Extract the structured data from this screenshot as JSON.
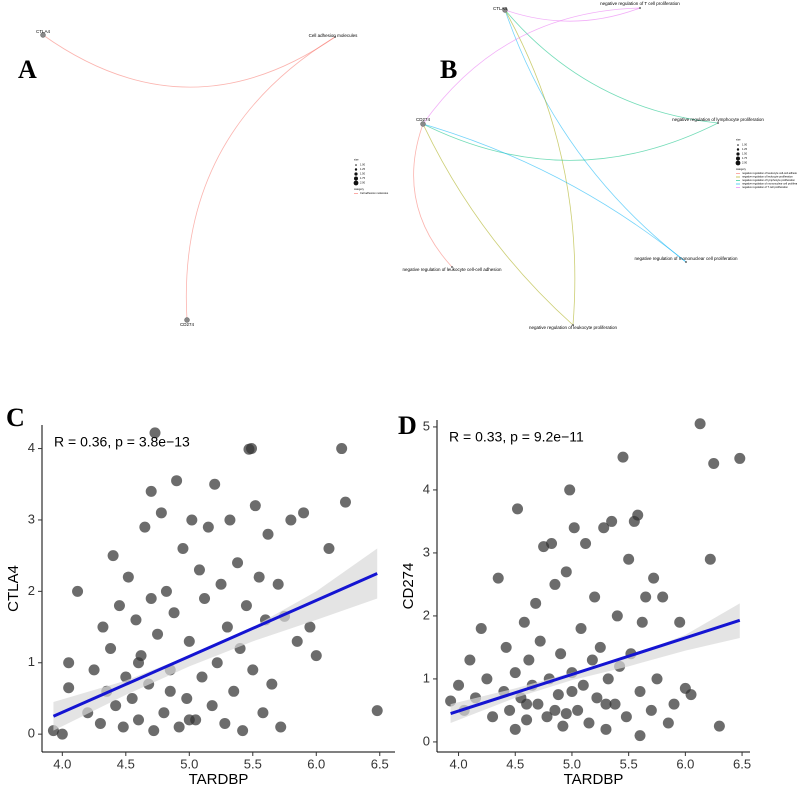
{
  "panel_labels": [
    "A",
    "B",
    "C",
    "D"
  ],
  "diagrams": [
    {
      "nodes": [
        {
          "label": "CTLA4"
        },
        {
          "label": "Cell adhesion molecules"
        },
        {
          "label": "CD274"
        }
      ],
      "edges": [
        [
          0,
          1
        ],
        [
          2,
          1
        ]
      ],
      "legend": {
        "size_title": "size",
        "sizes": [
          "1.00",
          "1.25",
          "1.50",
          "1.75",
          "2.00"
        ],
        "category_title": "category",
        "categories": [
          {
            "name": "Cell adhesion molecules",
            "color": "#F8766D"
          }
        ]
      }
    },
    {
      "nodes": [
        {
          "label": "CTLA4"
        },
        {
          "label": "CD274"
        },
        {
          "label": "negative regulation of T cell proliferation"
        },
        {
          "label": "negative regulation of lymphocyte proliferation"
        },
        {
          "label": "negative regulation of mononuclear cell proliferation"
        },
        {
          "label": "negative regulation of leukocyte proliferation"
        },
        {
          "label": "negative regulation of leukocyte cell-cell adhesion"
        }
      ],
      "edges": [
        [
          0,
          2
        ],
        [
          0,
          3
        ],
        [
          0,
          4
        ],
        [
          0,
          5
        ],
        [
          1,
          2
        ],
        [
          1,
          3
        ],
        [
          1,
          4
        ],
        [
          1,
          5
        ],
        [
          1,
          6
        ]
      ],
      "legend": {
        "size_title": "size",
        "sizes": [
          "1.00",
          "1.25",
          "1.50",
          "1.75",
          "2.00"
        ],
        "category_title": "category",
        "categories": [
          {
            "name": "negative regulation of leukocyte cell-cell adhesion",
            "color": "#F8766D"
          },
          {
            "name": "negative regulation of leukocyte proliferation",
            "color": "#A3A500"
          },
          {
            "name": "negative regulation of lymphocyte proliferation",
            "color": "#00BF7D"
          },
          {
            "name": "negative regulation of mononuclear cell proliferation",
            "color": "#00B0F6"
          },
          {
            "name": "negative regulation of T cell proliferation",
            "color": "#E76BF3"
          }
        ]
      }
    }
  ],
  "chart_data": [
    {
      "type": "scatter",
      "annotation": "R = 0.36, p = 3.8e−13",
      "x_label": "TARDBP",
      "y_label": "CTLA4",
      "color": "#333333",
      "fit_color": "#1414d2",
      "band_color": "#d9d9d9",
      "xlim": [
        3.84,
        6.62
      ],
      "ylim": [
        -0.25,
        4.33
      ],
      "xticks": [
        {
          "value": 4,
          "label": "4.0"
        },
        4.5,
        {
          "value": 5,
          "label": "5.0"
        },
        5.5,
        {
          "value": 6,
          "label": "6.0"
        },
        6.5
      ],
      "yticks": [
        0,
        1,
        2,
        3,
        4
      ],
      "x": [
        3.93,
        4.0,
        4.05,
        4.05,
        4.12,
        4.2,
        4.25,
        4.3,
        4.32,
        4.35,
        4.38,
        4.4,
        4.42,
        4.45,
        4.48,
        4.5,
        4.52,
        4.55,
        4.58,
        4.6,
        4.62,
        4.65,
        4.68,
        4.7,
        4.72,
        4.73,
        4.75,
        4.78,
        4.8,
        4.82,
        4.85,
        4.88,
        4.9,
        4.92,
        4.95,
        4.98,
        5.0,
        5.02,
        5.05,
        5.08,
        5.1,
        5.12,
        5.15,
        5.18,
        5.2,
        5.22,
        5.25,
        5.28,
        5.3,
        5.32,
        5.35,
        5.38,
        5.4,
        5.42,
        5.45,
        5.47,
        5.49,
        5.5,
        5.52,
        5.55,
        5.58,
        5.6,
        5.62,
        5.65,
        5.7,
        5.72,
        5.75,
        5.8,
        5.85,
        5.9,
        5.95,
        6.0,
        6.1,
        6.2,
        6.23,
        6.48,
        4.6,
        4.85,
        5.0,
        4.7
      ],
      "y": [
        0.05,
        0.0,
        1.0,
        0.65,
        2.0,
        0.3,
        0.9,
        0.15,
        1.5,
        0.6,
        1.2,
        2.5,
        0.4,
        1.8,
        0.1,
        0.8,
        2.2,
        0.5,
        1.6,
        0.2,
        1.1,
        2.9,
        0.7,
        3.4,
        0.05,
        4.22,
        1.4,
        3.1,
        0.3,
        2.0,
        0.9,
        1.7,
        3.55,
        0.1,
        2.6,
        0.5,
        1.3,
        3.0,
        0.2,
        2.3,
        0.8,
        1.9,
        2.9,
        0.4,
        3.5,
        1.0,
        2.1,
        0.15,
        1.5,
        3.0,
        0.6,
        2.4,
        1.2,
        0.05,
        1.8,
        3.99,
        4.0,
        0.9,
        3.2,
        2.2,
        0.3,
        1.6,
        2.8,
        0.7,
        2.1,
        0.1,
        1.65,
        3.0,
        1.3,
        3.1,
        1.5,
        1.1,
        2.6,
        4.0,
        3.25,
        0.33,
        1.0,
        0.6,
        0.2,
        1.9
      ],
      "fit": {
        "x": [
          3.93,
          6.48
        ],
        "y": [
          0.25,
          2.25
        ]
      },
      "band": {
        "x": [
          3.93,
          4.5,
          5.0,
          5.5,
          6.0,
          6.48
        ],
        "lower": [
          0.05,
          0.55,
          0.95,
          1.3,
          1.6,
          1.9
        ],
        "upper": [
          0.45,
          0.75,
          1.1,
          1.5,
          2.0,
          2.6
        ]
      }
    },
    {
      "type": "scatter",
      "annotation": "R = 0.33, p = 9.2e−11",
      "x_label": "TARDBP",
      "y_label": "CD274",
      "color": "#333333",
      "fit_color": "#1414d2",
      "band_color": "#d9d9d9",
      "xlim": [
        3.81,
        6.57
      ],
      "ylim": [
        -0.16,
        5.11
      ],
      "xticks": [
        {
          "value": 4,
          "label": "4.0"
        },
        4.5,
        {
          "value": 5,
          "label": "5.0"
        },
        5.5,
        {
          "value": 6,
          "label": "6.0"
        },
        6.5
      ],
      "yticks": [
        0,
        1,
        2,
        3,
        4,
        5
      ],
      "x": [
        3.93,
        4.0,
        4.05,
        4.1,
        4.15,
        4.2,
        4.25,
        4.3,
        4.35,
        4.4,
        4.42,
        4.45,
        4.5,
        4.52,
        4.55,
        4.58,
        4.6,
        4.62,
        4.65,
        4.68,
        4.7,
        4.72,
        4.75,
        4.78,
        4.8,
        4.82,
        4.85,
        4.88,
        4.9,
        4.92,
        4.95,
        4.98,
        5.0,
        5.02,
        5.05,
        5.08,
        5.1,
        5.12,
        5.15,
        5.18,
        5.2,
        5.22,
        5.25,
        5.28,
        5.3,
        5.32,
        5.35,
        5.38,
        5.4,
        5.42,
        5.45,
        5.48,
        5.5,
        5.52,
        5.55,
        5.58,
        5.6,
        5.62,
        5.65,
        5.7,
        5.72,
        5.75,
        5.8,
        5.85,
        5.9,
        5.95,
        6.0,
        6.05,
        6.13,
        6.22,
        6.25,
        6.3,
        6.48,
        4.6,
        4.85,
        5.0,
        5.3,
        4.5,
        5.6,
        4.95
      ],
      "y": [
        0.65,
        0.9,
        0.5,
        1.3,
        0.7,
        1.8,
        1.0,
        0.4,
        2.6,
        0.8,
        1.5,
        0.5,
        1.1,
        3.7,
        0.7,
        1.9,
        0.35,
        1.3,
        0.9,
        2.2,
        0.6,
        1.6,
        3.1,
        0.4,
        1.0,
        3.15,
        2.5,
        0.75,
        1.4,
        0.25,
        2.7,
        4.0,
        1.1,
        3.4,
        0.5,
        1.8,
        0.9,
        3.15,
        0.3,
        1.3,
        2.3,
        0.7,
        1.5,
        3.4,
        0.2,
        1.0,
        3.5,
        0.6,
        2.0,
        1.2,
        4.52,
        0.4,
        2.9,
        1.4,
        3.5,
        3.6,
        0.8,
        1.9,
        2.3,
        0.5,
        2.6,
        1.0,
        2.3,
        0.3,
        0.6,
        1.9,
        0.85,
        0.75,
        5.05,
        2.9,
        4.42,
        0.25,
        4.5,
        0.6,
        0.5,
        0.8,
        0.6,
        0.2,
        0.1,
        0.45
      ],
      "fit": {
        "x": [
          3.93,
          6.48
        ],
        "y": [
          0.45,
          1.93
        ]
      },
      "band": {
        "x": [
          3.93,
          4.5,
          5.0,
          5.5,
          6.0,
          6.48
        ],
        "lower": [
          0.3,
          0.7,
          0.98,
          1.2,
          1.45,
          1.65
        ],
        "upper": [
          0.6,
          0.85,
          1.1,
          1.35,
          1.7,
          2.2
        ]
      }
    }
  ]
}
